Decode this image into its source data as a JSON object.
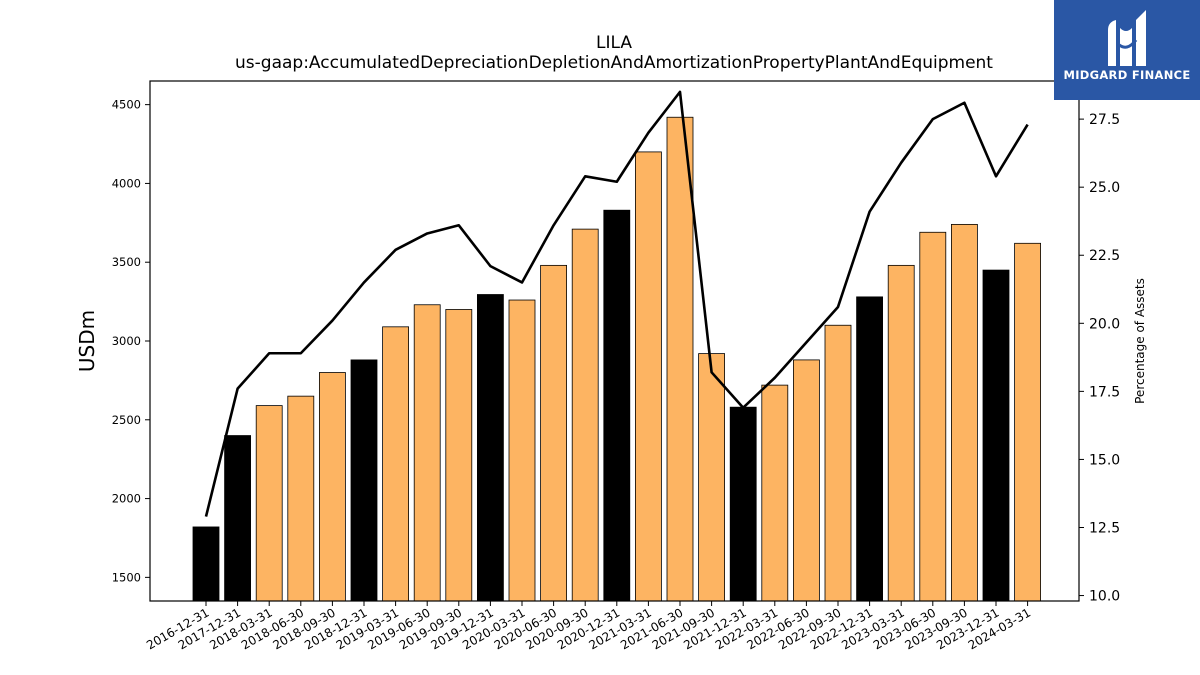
{
  "chart_data": {
    "type": "bar",
    "title": "LILA",
    "subtitle": "us-gaap:AccumulatedDepreciationDepletionAndAmortizationPropertyPlantAndEquipment",
    "ylabel": "USDm",
    "y2label": "Percentage of Assets",
    "ylim": [
      1350,
      4650
    ],
    "y2lim": [
      9.8,
      28.9
    ],
    "yticks": [
      1500,
      2000,
      2500,
      3000,
      3500,
      4000,
      4500
    ],
    "y2ticks": [
      "10.0",
      "12.5",
      "15.0",
      "17.5",
      "20.0",
      "22.5",
      "25.0",
      "27.5"
    ],
    "categories": [
      "2016-12-31",
      "2017-12-31",
      "2018-03-31",
      "2018-06-30",
      "2018-09-30",
      "2018-12-31",
      "2019-03-31",
      "2019-06-30",
      "2019-09-30",
      "2019-12-31",
      "2020-03-31",
      "2020-06-30",
      "2020-09-30",
      "2020-12-31",
      "2021-03-31",
      "2021-06-30",
      "2021-09-30",
      "2021-12-31",
      "2022-03-31",
      "2022-06-30",
      "2022-09-30",
      "2022-12-31",
      "2023-03-31",
      "2023-06-30",
      "2023-09-30",
      "2023-12-31",
      "2024-03-31"
    ],
    "series": [
      {
        "type": "bar",
        "values": [
          1820,
          2400,
          2590,
          2650,
          2800,
          2880,
          3090,
          3230,
          3200,
          3295,
          3260,
          3480,
          3710,
          3830,
          4200,
          4420,
          2920,
          2580,
          2720,
          2880,
          3100,
          3280,
          3480,
          3690,
          3740,
          3450,
          3620
        ],
        "annual": [
          true,
          true,
          false,
          false,
          false,
          true,
          false,
          false,
          false,
          true,
          false,
          false,
          false,
          true,
          false,
          false,
          false,
          true,
          false,
          false,
          false,
          true,
          false,
          false,
          false,
          true,
          false
        ]
      },
      {
        "type": "line",
        "axis": "right",
        "values": [
          12.9,
          17.6,
          18.9,
          18.9,
          20.1,
          21.5,
          22.7,
          23.3,
          23.6,
          22.1,
          21.5,
          23.6,
          25.4,
          25.2,
          27.0,
          28.5,
          18.2,
          16.9,
          18.0,
          19.3,
          20.6,
          24.1,
          25.9,
          27.5,
          28.1,
          25.4,
          27.3
        ]
      }
    ],
    "colors": {
      "quarter_bar": "#fdb462",
      "annual_bar": "#000000",
      "line": "#000000",
      "edge": "#000000"
    },
    "grid": false
  },
  "logo": {
    "text": "MIDGARD FINANCE",
    "background": "#2a57a5"
  }
}
